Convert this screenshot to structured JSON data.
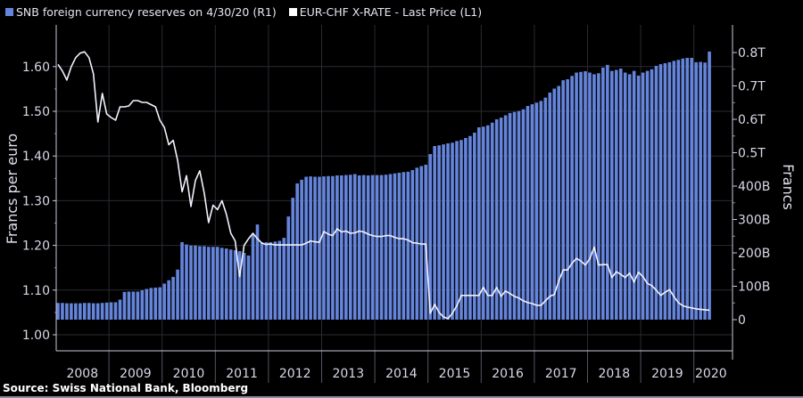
{
  "chart_data": {
    "type": "bar+line",
    "legend": {
      "placement": "top-left",
      "entries": [
        {
          "label": "SNB foreign currency reserves on 4/30/20 (R1)",
          "color": "#6585dd"
        },
        {
          "label": "EUR-CHF X-RATE - Last Price (L1)",
          "color": "#ffffff"
        }
      ]
    },
    "ylabel_left": "Francs per euro",
    "ylabel_right": "Francs",
    "source": "Source: Swiss National Bank, Bloomberg",
    "ylim_left": [
      1.0,
      1.65
    ],
    "ylim_right": [
      0,
      820
    ],
    "yticks_left": [
      "1.00",
      "1.10",
      "1.20",
      "1.30",
      "1.40",
      "1.50",
      "1.60"
    ],
    "yticks_left_values": [
      1.0,
      1.1,
      1.2,
      1.3,
      1.4,
      1.5,
      1.6
    ],
    "yticks_right": [
      "0",
      "100B",
      "200B",
      "300B",
      "400B",
      "0.5T",
      "0.6T",
      "0.7T",
      "0.8T"
    ],
    "yticks_right_values": [
      0,
      100,
      200,
      300,
      400,
      500,
      600,
      700,
      800
    ],
    "xticks": [
      "2008",
      "2009",
      "2010",
      "2011",
      "2012",
      "2013",
      "2014",
      "2015",
      "2016",
      "2017",
      "2018",
      "2019",
      "2020"
    ],
    "grid": true,
    "background": "#000000",
    "x": [
      "2008-01",
      "2008-02",
      "2008-03",
      "2008-04",
      "2008-05",
      "2008-06",
      "2008-07",
      "2008-08",
      "2008-09",
      "2008-10",
      "2008-11",
      "2008-12",
      "2009-01",
      "2009-02",
      "2009-03",
      "2009-04",
      "2009-05",
      "2009-06",
      "2009-07",
      "2009-08",
      "2009-09",
      "2009-10",
      "2009-11",
      "2009-12",
      "2010-01",
      "2010-02",
      "2010-03",
      "2010-04",
      "2010-05",
      "2010-06",
      "2010-07",
      "2010-08",
      "2010-09",
      "2010-10",
      "2010-11",
      "2010-12",
      "2011-01",
      "2011-02",
      "2011-03",
      "2011-04",
      "2011-05",
      "2011-06",
      "2011-07",
      "2011-08",
      "2011-09",
      "2011-10",
      "2011-11",
      "2011-12",
      "2012-01",
      "2012-02",
      "2012-03",
      "2012-04",
      "2012-05",
      "2012-06",
      "2012-07",
      "2012-08",
      "2012-09",
      "2012-10",
      "2012-11",
      "2012-12",
      "2013-01",
      "2013-02",
      "2013-03",
      "2013-04",
      "2013-05",
      "2013-06",
      "2013-07",
      "2013-08",
      "2013-09",
      "2013-10",
      "2013-11",
      "2013-12",
      "2014-01",
      "2014-02",
      "2014-03",
      "2014-04",
      "2014-05",
      "2014-06",
      "2014-07",
      "2014-08",
      "2014-09",
      "2014-10",
      "2014-11",
      "2014-12",
      "2015-01",
      "2015-02",
      "2015-03",
      "2015-04",
      "2015-05",
      "2015-06",
      "2015-07",
      "2015-08",
      "2015-09",
      "2015-10",
      "2015-11",
      "2015-12",
      "2016-01",
      "2016-02",
      "2016-03",
      "2016-04",
      "2016-05",
      "2016-06",
      "2016-07",
      "2016-08",
      "2016-09",
      "2016-10",
      "2016-11",
      "2016-12",
      "2017-01",
      "2017-02",
      "2017-03",
      "2017-04",
      "2017-05",
      "2017-06",
      "2017-07",
      "2017-08",
      "2017-09",
      "2017-10",
      "2017-11",
      "2017-12",
      "2018-01",
      "2018-02",
      "2018-03",
      "2018-04",
      "2018-05",
      "2018-06",
      "2018-07",
      "2018-08",
      "2018-09",
      "2018-10",
      "2018-11",
      "2018-12",
      "2019-01",
      "2019-02",
      "2019-03",
      "2019-04",
      "2019-05",
      "2019-06",
      "2019-07",
      "2019-08",
      "2019-09",
      "2019-10",
      "2019-11",
      "2019-12",
      "2020-01",
      "2020-02",
      "2020-03",
      "2020-04"
    ],
    "series": [
      {
        "name": "SNB foreign currency reserves on 4/30/20 (R1)",
        "axis": "right",
        "type": "bar",
        "unit": "billion CHF",
        "values": [
          50,
          50,
          49,
          49,
          49,
          49,
          50,
          50,
          49,
          49,
          50,
          51,
          52,
          52,
          60,
          83,
          84,
          84,
          84,
          88,
          92,
          95,
          96,
          97,
          108,
          118,
          128,
          150,
          232,
          225,
          222,
          222,
          220,
          220,
          218,
          218,
          218,
          215,
          213,
          210,
          208,
          205,
          200,
          192,
          256,
          285,
          232,
          232,
          232,
          234,
          236,
          245,
          309,
          365,
          408,
          419,
          428,
          429,
          428,
          428,
          429,
          430,
          430,
          432,
          432,
          433,
          434,
          436,
          432,
          433,
          432,
          433,
          433,
          433,
          434,
          436,
          438,
          440,
          442,
          443,
          448,
          455,
          460,
          464,
          496,
          520,
          522,
          525,
          528,
          530,
          535,
          538,
          544,
          550,
          560,
          576,
          578,
          582,
          590,
          600,
          605,
          612,
          619,
          622,
          625,
          630,
          640,
          645,
          650,
          655,
          665,
          680,
          692,
          700,
          717,
          720,
          730,
          740,
          742,
          744,
          740,
          735,
          738,
          755,
          763,
          745,
          748,
          752,
          740,
          735,
          745,
          731,
          740,
          745,
          750,
          760,
          765,
          768,
          771,
          775,
          778,
          782,
          784,
          784,
          771,
          772,
          770,
          803
        ]
      },
      {
        "name": "EUR-CHF X-RATE - Last Price (L1)",
        "axis": "left",
        "type": "line",
        "unit": "francs per euro",
        "values": [
          1.605,
          1.59,
          1.57,
          1.6,
          1.62,
          1.63,
          1.633,
          1.62,
          1.584,
          1.476,
          1.54,
          1.494,
          1.486,
          1.48,
          1.51,
          1.51,
          1.512,
          1.524,
          1.524,
          1.52,
          1.52,
          1.515,
          1.51,
          1.48,
          1.464,
          1.425,
          1.435,
          1.39,
          1.32,
          1.356,
          1.287,
          1.345,
          1.367,
          1.317,
          1.251,
          1.29,
          1.28,
          1.3,
          1.27,
          1.227,
          1.21,
          1.13,
          1.2,
          1.215,
          1.227,
          1.215,
          1.205,
          1.202,
          1.203,
          1.201,
          1.201,
          1.201,
          1.201,
          1.201,
          1.201,
          1.201,
          1.205,
          1.21,
          1.208,
          1.207,
          1.231,
          1.225,
          1.222,
          1.237,
          1.23,
          1.232,
          1.227,
          1.228,
          1.232,
          1.23,
          1.225,
          1.222,
          1.22,
          1.22,
          1.222,
          1.222,
          1.218,
          1.215,
          1.215,
          1.212,
          1.206,
          1.205,
          1.203,
          1.203,
          1.048,
          1.068,
          1.05,
          1.04,
          1.036,
          1.048,
          1.065,
          1.088,
          1.088,
          1.088,
          1.088,
          1.088,
          1.106,
          1.088,
          1.088,
          1.106,
          1.086,
          1.098,
          1.092,
          1.086,
          1.082,
          1.076,
          1.072,
          1.07,
          1.066,
          1.066,
          1.076,
          1.086,
          1.09,
          1.12,
          1.145,
          1.145,
          1.16,
          1.171,
          1.165,
          1.156,
          1.17,
          1.196,
          1.156,
          1.157,
          1.157,
          1.128,
          1.141,
          1.135,
          1.128,
          1.138,
          1.118,
          1.14,
          1.13,
          1.115,
          1.11,
          1.1,
          1.088,
          1.095,
          1.101,
          1.085,
          1.072,
          1.065,
          1.062,
          1.06,
          1.058,
          1.057,
          1.056,
          1.055
        ]
      }
    ]
  }
}
